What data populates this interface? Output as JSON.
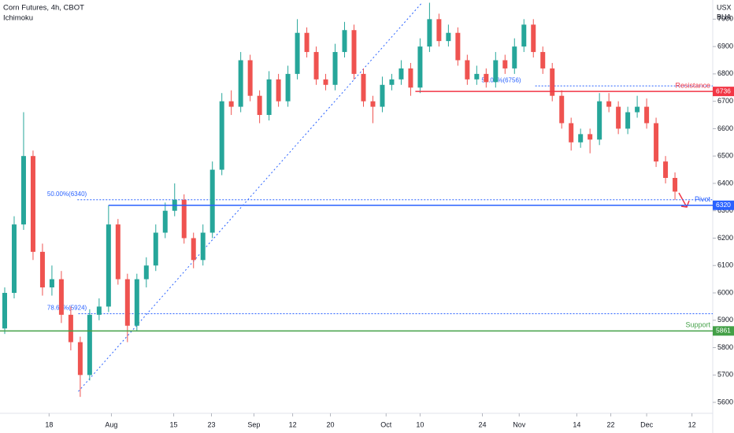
{
  "chart_data": {
    "type": "candlestick",
    "title": "Corn Futures, 4h, CBOT",
    "subtitle": "Ichimoku",
    "currency": "USX",
    "unit": "BUA",
    "up_color": "#26a69a",
    "down_color": "#ef5350",
    "ylim": [
      5560,
      7070
    ],
    "yticks": [
      5600,
      5700,
      5800,
      5900,
      6000,
      6100,
      6200,
      6300,
      6400,
      6500,
      6600,
      6700,
      6800,
      6900,
      7000
    ],
    "xlim": [
      0,
      75.5
    ],
    "xticks": [
      {
        "value": 5.2,
        "label": "18"
      },
      {
        "value": 11.8,
        "label": "Aug"
      },
      {
        "value": 18.4,
        "label": "15"
      },
      {
        "value": 22.4,
        "label": "23"
      },
      {
        "value": 26.9,
        "label": "Sep"
      },
      {
        "value": 31.0,
        "label": "12"
      },
      {
        "value": 35.0,
        "label": "20"
      },
      {
        "value": 40.9,
        "label": "Oct"
      },
      {
        "value": 44.5,
        "label": "10"
      },
      {
        "value": 51.1,
        "label": "24"
      },
      {
        "value": 55.0,
        "label": "Nov"
      },
      {
        "value": 61.1,
        "label": "14"
      },
      {
        "value": 64.7,
        "label": "22"
      },
      {
        "value": 68.5,
        "label": "Dec"
      },
      {
        "value": 73.3,
        "label": "12"
      }
    ],
    "candles": [
      [
        5870,
        6020,
        5850,
        6000
      ],
      [
        6000,
        6280,
        5980,
        6250
      ],
      [
        6250,
        6660,
        6230,
        6500
      ],
      [
        6500,
        6520,
        6120,
        6150
      ],
      [
        6150,
        6180,
        5990,
        6020
      ],
      [
        6020,
        6100,
        5990,
        6050
      ],
      [
        6050,
        6080,
        5890,
        5920
      ],
      [
        5920,
        5950,
        5790,
        5820
      ],
      [
        5820,
        5840,
        5620,
        5700
      ],
      [
        5700,
        5940,
        5680,
        5920
      ],
      [
        5920,
        5980,
        5900,
        5950
      ],
      [
        5950,
        6320,
        5930,
        6250
      ],
      [
        6250,
        6270,
        6030,
        6050
      ],
      [
        6050,
        6070,
        5820,
        5880
      ],
      [
        5880,
        6070,
        5860,
        6050
      ],
      [
        6050,
        6130,
        6020,
        6100
      ],
      [
        6100,
        6250,
        6080,
        6220
      ],
      [
        6220,
        6330,
        6200,
        6300
      ],
      [
        6300,
        6400,
        6280,
        6340
      ],
      [
        6340,
        6360,
        6180,
        6200
      ],
      [
        6200,
        6220,
        6090,
        6120
      ],
      [
        6120,
        6250,
        6100,
        6220
      ],
      [
        6220,
        6480,
        6200,
        6450
      ],
      [
        6450,
        6730,
        6430,
        6700
      ],
      [
        6700,
        6740,
        6650,
        6680
      ],
      [
        6680,
        6880,
        6660,
        6850
      ],
      [
        6850,
        6870,
        6700,
        6720
      ],
      [
        6720,
        6740,
        6620,
        6650
      ],
      [
        6650,
        6810,
        6630,
        6780
      ],
      [
        6780,
        6800,
        6680,
        6700
      ],
      [
        6700,
        6830,
        6680,
        6800
      ],
      [
        6800,
        7000,
        6780,
        6950
      ],
      [
        6950,
        6970,
        6860,
        6880
      ],
      [
        6880,
        6900,
        6760,
        6780
      ],
      [
        6780,
        6800,
        6740,
        6760
      ],
      [
        6760,
        6910,
        6740,
        6880
      ],
      [
        6880,
        6990,
        6860,
        6960
      ],
      [
        6960,
        6980,
        6780,
        6800
      ],
      [
        6800,
        6820,
        6680,
        6700
      ],
      [
        6700,
        6720,
        6620,
        6680
      ],
      [
        6680,
        6790,
        6660,
        6760
      ],
      [
        6760,
        6800,
        6740,
        6780
      ],
      [
        6780,
        6850,
        6760,
        6820
      ],
      [
        6820,
        6840,
        6720,
        6750
      ],
      [
        6750,
        6930,
        6730,
        6900
      ],
      [
        6900,
        7060,
        6880,
        7000
      ],
      [
        7000,
        7020,
        6900,
        6920
      ],
      [
        6920,
        6980,
        6900,
        6950
      ],
      [
        6950,
        6970,
        6830,
        6850
      ],
      [
        6850,
        6870,
        6760,
        6780
      ],
      [
        6780,
        6830,
        6760,
        6800
      ],
      [
        6800,
        6820,
        6750,
        6770
      ],
      [
        6770,
        6880,
        6750,
        6850
      ],
      [
        6850,
        6870,
        6800,
        6820
      ],
      [
        6820,
        6930,
        6800,
        6900
      ],
      [
        6900,
        7000,
        6880,
        6980
      ],
      [
        6980,
        7000,
        6860,
        6880
      ],
      [
        6880,
        6900,
        6800,
        6820
      ],
      [
        6820,
        6840,
        6700,
        6720
      ],
      [
        6720,
        6740,
        6600,
        6620
      ],
      [
        6620,
        6640,
        6520,
        6550
      ],
      [
        6550,
        6600,
        6530,
        6580
      ],
      [
        6580,
        6600,
        6510,
        6560
      ],
      [
        6560,
        6730,
        6540,
        6700
      ],
      [
        6700,
        6730,
        6660,
        6680
      ],
      [
        6680,
        6700,
        6580,
        6600
      ],
      [
        6600,
        6680,
        6580,
        6660
      ],
      [
        6660,
        6720,
        6640,
        6680
      ],
      [
        6680,
        6710,
        6600,
        6620
      ],
      [
        6620,
        6640,
        6460,
        6480
      ],
      [
        6480,
        6500,
        6400,
        6420
      ],
      [
        6420,
        6440,
        6340,
        6370
      ]
    ],
    "levels": [
      {
        "name": "Resistance",
        "value": 6736,
        "color": "#f23645",
        "start": 44.0
      },
      {
        "name": "Pivot",
        "value": 6320,
        "color": "#2962ff",
        "start": 11.5
      },
      {
        "name": "Support",
        "value": 5861,
        "color": "#43a047",
        "start": 0
      }
    ],
    "fib_lines": [
      {
        "label": "50.00%(6340)",
        "value": 6340,
        "start": 8.2,
        "label_at": 5.0
      },
      {
        "label": "78.60%(5924)",
        "value": 5924,
        "start": 8.3,
        "label_at": 5.0
      },
      {
        "label": "50.00%(6756)",
        "value": 6756,
        "start": 56.7,
        "label_at": 51.0
      }
    ],
    "trendline": {
      "x": [
        8.3,
        44.7
      ],
      "y": [
        5640,
        7060
      ]
    }
  }
}
